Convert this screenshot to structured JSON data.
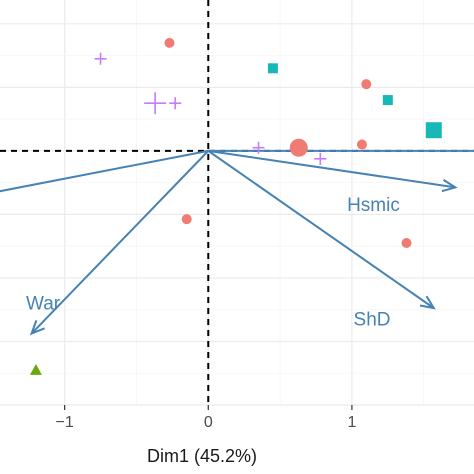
{
  "chart_data": {
    "type": "scatter",
    "title": "",
    "xlabel": "Dim1 (45.2%)",
    "ylabel": "",
    "xlim": [
      -1.45,
      1.85
    ],
    "ylim": [
      -1.6,
      0.95
    ],
    "x_ticks": [
      {
        "value": -1,
        "label": "−1"
      },
      {
        "value": 0,
        "label": "0"
      },
      {
        "value": 1,
        "label": "1"
      }
    ],
    "grid": true,
    "reference_lines": {
      "x": 0,
      "y": 0
    },
    "colors": {
      "red": "#f07b72",
      "cyan": "#18b8b6",
      "purple": "#c77cff",
      "green": "#6aa80e",
      "arrow": "#4682b4",
      "grid_major": "#ebebeb",
      "grid_minor": "#f5f5f5"
    },
    "series": [
      {
        "marker": "circle",
        "color": "#f07b72",
        "points": [
          {
            "x": -0.27,
            "y": 0.68,
            "size": 5
          },
          {
            "x": -0.15,
            "y": -0.43,
            "size": 5
          },
          {
            "x": 0.63,
            "y": 0.02,
            "size": 9
          },
          {
            "x": 1.07,
            "y": 0.04,
            "size": 5
          },
          {
            "x": 1.1,
            "y": 0.42,
            "size": 5
          },
          {
            "x": 1.38,
            "y": -0.58,
            "size": 5
          }
        ]
      },
      {
        "marker": "square",
        "color": "#18b8b6",
        "points": [
          {
            "x": 0.45,
            "y": 0.52,
            "size": 5
          },
          {
            "x": 1.25,
            "y": 0.32,
            "size": 5
          },
          {
            "x": 1.57,
            "y": 0.13,
            "size": 8
          }
        ]
      },
      {
        "marker": "plus",
        "color": "#c77cff",
        "points": [
          {
            "x": -0.75,
            "y": 0.58,
            "size": 6
          },
          {
            "x": -0.37,
            "y": 0.3,
            "size": 11
          },
          {
            "x": -0.23,
            "y": 0.3,
            "size": 6
          },
          {
            "x": 0.35,
            "y": 0.02,
            "size": 6
          },
          {
            "x": 0.78,
            "y": -0.05,
            "size": 6
          }
        ]
      },
      {
        "marker": "triangle",
        "color": "#6aa80e",
        "points": [
          {
            "x": -1.2,
            "y": -1.38,
            "size": 6
          }
        ]
      }
    ],
    "vectors": [
      {
        "label": "War",
        "x": -1.23,
        "y": -1.15,
        "label_x": -1.15,
        "label_y": -1.0
      },
      {
        "label": "",
        "x": -1.6,
        "y": -0.28,
        "label_x": 0,
        "label_y": 0
      },
      {
        "label": "Hsmic",
        "x": 1.72,
        "y": -0.23,
        "label_x": 1.15,
        "label_y": -0.38
      },
      {
        "label": "ShD",
        "x": 1.57,
        "y": -0.99,
        "label_x": 1.14,
        "label_y": -1.1
      },
      {
        "label": "",
        "x": 1.95,
        "y": 0.0,
        "label_x": 0,
        "label_y": 0
      }
    ]
  }
}
